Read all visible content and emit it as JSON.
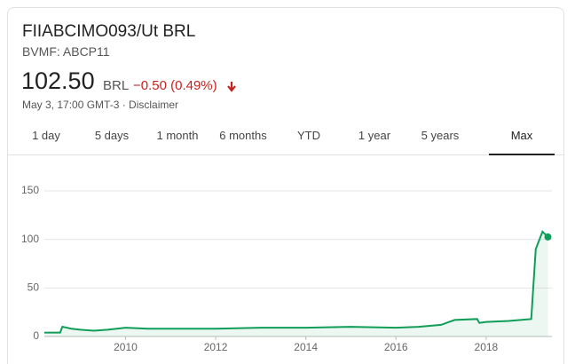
{
  "header": {
    "title": "FIIABCIMO093/Ut BRL",
    "exchange": "BVMF: ABCP11",
    "price": "102.50",
    "currency": "BRL",
    "change": "−0.50 (0.49%)",
    "meta": "May 3, 17:00 GMT-3 · Disclaimer"
  },
  "tabs": [
    "1 day",
    "5 days",
    "1 month",
    "6 months",
    "YTD",
    "1 year",
    "5 years",
    "Max"
  ],
  "chart_data": {
    "type": "line",
    "x": [
      2008.2,
      2008.55,
      2008.6,
      2008.8,
      2009.0,
      2009.3,
      2009.6,
      2010.0,
      2010.5,
      2011.0,
      2012.0,
      2013.0,
      2014.0,
      2015.0,
      2016.0,
      2016.5,
      2017.0,
      2017.3,
      2017.8,
      2017.85,
      2018.0,
      2018.5,
      2019.0,
      2019.1,
      2019.25,
      2019.37
    ],
    "series": [
      {
        "color": "#0f9d58",
        "values": [
          4,
          4,
          10,
          8,
          7,
          6,
          7,
          9,
          8,
          8,
          8,
          9,
          9,
          10,
          9,
          10,
          12,
          17,
          18,
          14,
          15,
          16,
          18,
          90,
          108,
          102.5
        ]
      }
    ],
    "xlim": [
      2008.2,
      2019.4
    ],
    "xticks": [
      2010,
      2012,
      2014,
      2016,
      2018
    ],
    "ylim": [
      0,
      150
    ],
    "yticks": [
      0,
      50,
      100,
      150
    ],
    "grid": true
  }
}
